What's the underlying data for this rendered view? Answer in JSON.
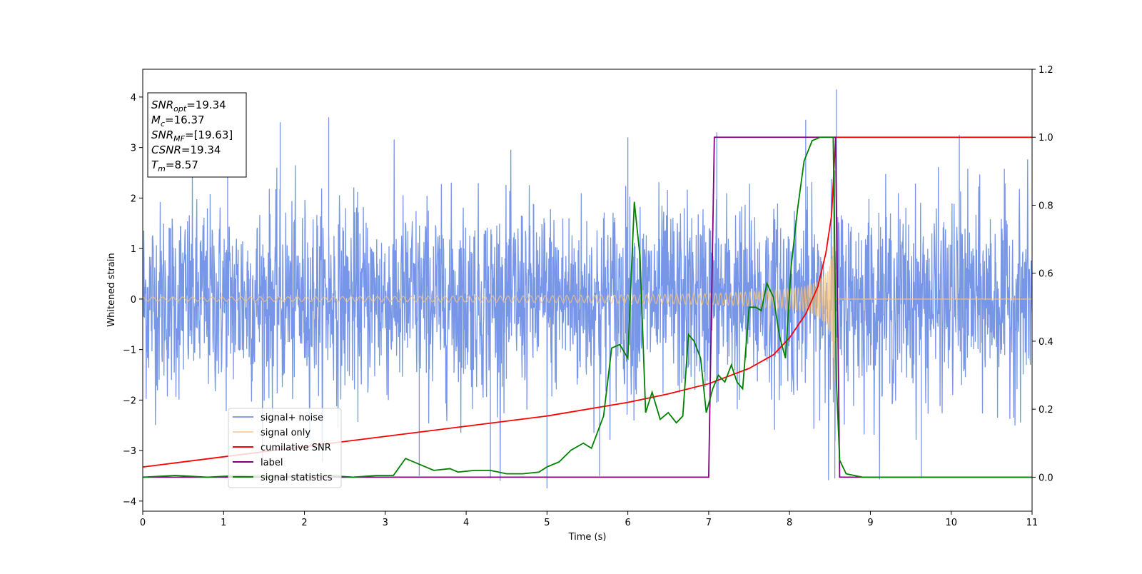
{
  "chart_data": {
    "type": "line",
    "title": "",
    "xlabel": "Time (s)",
    "ylabel": "Whitened strain",
    "y2label": "",
    "xlim": [
      0,
      11
    ],
    "ylim": [
      -4.2,
      4.55
    ],
    "y2lim": [
      -0.1,
      1.2
    ],
    "xticks": [
      "0",
      "1",
      "2",
      "3",
      "4",
      "5",
      "6",
      "7",
      "8",
      "9",
      "10",
      "11"
    ],
    "yticks": [
      "−4",
      "−3",
      "−2",
      "−1",
      "0",
      "1",
      "2",
      "3",
      "4"
    ],
    "y2ticks": [
      "0.0",
      "0.2",
      "0.4",
      "0.6",
      "0.8",
      "1.0",
      "1.2"
    ],
    "grid": false,
    "legend_position": "lower-left",
    "annotation": {
      "lines": [
        {
          "sym": "SNR",
          "sub": "opt",
          "val": "=19.34"
        },
        {
          "sym": "M",
          "sub": "c",
          "val": "=16.37"
        },
        {
          "sym": "SNR",
          "sub": "MF",
          "val": "=[19.63]"
        },
        {
          "sym": "CSNR",
          "sub": "",
          "val": "=19.34"
        },
        {
          "sym": "T",
          "sub": "m",
          "val": "=8.57"
        }
      ]
    },
    "series": [
      {
        "name": "signal+ noise",
        "color": "#7090e6",
        "axis": "left",
        "description_values": {
          "noise_sigma": 1.0,
          "spikes": [
            [
              1.05,
              2.55
            ],
            [
              1.7,
              3.5
            ],
            [
              2.3,
              3.6
            ],
            [
              3.42,
              -3.5
            ],
            [
              4.3,
              -3.55
            ],
            [
              5.0,
              -3.75
            ],
            [
              5.65,
              -3.5
            ],
            [
              6.0,
              3.2
            ],
            [
              7.1,
              3.3
            ],
            [
              8.2,
              3.55
            ],
            [
              8.58,
              4.15
            ],
            [
              8.56,
              -3.55
            ],
            [
              9.63,
              -3.55
            ],
            [
              10.1,
              3.25
            ]
          ]
        }
      },
      {
        "name": "signal only",
        "color": "#f5c27a",
        "axis": "left",
        "description_values": {
          "merger_time": 8.57,
          "amplitude_start": 0.04,
          "amplitude_peak": 2.5,
          "cycles_per_second_start": 8
        }
      },
      {
        "name": "cumilative SNR",
        "color": "#ff0000",
        "axis": "right",
        "x": [
          0,
          1,
          2,
          3,
          4,
          5,
          6,
          6.5,
          7,
          7.5,
          7.8,
          8.0,
          8.2,
          8.35,
          8.45,
          8.52,
          8.57,
          11
        ],
        "y": [
          0.03,
          0.06,
          0.09,
          0.12,
          0.15,
          0.18,
          0.22,
          0.245,
          0.275,
          0.32,
          0.36,
          0.41,
          0.48,
          0.56,
          0.66,
          0.77,
          1.0,
          1.0
        ]
      },
      {
        "name": "label",
        "color": "#800080",
        "axis": "right",
        "x": [
          0,
          7.0,
          7.07,
          8.57,
          8.62,
          11
        ],
        "y": [
          0,
          0,
          1,
          1,
          0,
          0
        ]
      },
      {
        "name": "signal statistics",
        "color": "#008000",
        "axis": "right",
        "x": [
          0,
          0.4,
          0.8,
          1.2,
          1.6,
          2.0,
          2.3,
          2.6,
          2.9,
          3.1,
          3.25,
          3.45,
          3.6,
          3.8,
          3.9,
          4.1,
          4.3,
          4.5,
          4.7,
          4.9,
          5.0,
          5.15,
          5.3,
          5.45,
          5.55,
          5.7,
          5.8,
          5.9,
          6.0,
          6.08,
          6.15,
          6.22,
          6.3,
          6.4,
          6.5,
          6.6,
          6.68,
          6.75,
          6.82,
          6.9,
          6.97,
          7.05,
          7.12,
          7.2,
          7.28,
          7.35,
          7.42,
          7.5,
          7.58,
          7.65,
          7.72,
          7.8,
          7.88,
          7.95,
          8.02,
          8.1,
          8.18,
          8.28,
          8.38,
          8.48,
          8.54,
          8.58,
          8.62,
          8.7,
          8.9,
          9.5,
          10.5,
          11
        ],
        "y": [
          0.0,
          0.005,
          0.0,
          0.005,
          0.0,
          0.005,
          0.005,
          0.0,
          0.005,
          0.005,
          0.055,
          0.035,
          0.02,
          0.025,
          0.015,
          0.02,
          0.02,
          0.01,
          0.01,
          0.015,
          0.03,
          0.045,
          0.08,
          0.1,
          0.085,
          0.18,
          0.38,
          0.39,
          0.35,
          0.81,
          0.65,
          0.19,
          0.25,
          0.17,
          0.19,
          0.16,
          0.18,
          0.42,
          0.4,
          0.35,
          0.19,
          0.26,
          0.3,
          0.28,
          0.33,
          0.28,
          0.26,
          0.5,
          0.5,
          0.49,
          0.57,
          0.53,
          0.41,
          0.35,
          0.62,
          0.79,
          0.93,
          0.99,
          1.0,
          1.0,
          1.0,
          0.28,
          0.05,
          0.01,
          0.0,
          0.0,
          0.0,
          0.0
        ]
      }
    ]
  }
}
